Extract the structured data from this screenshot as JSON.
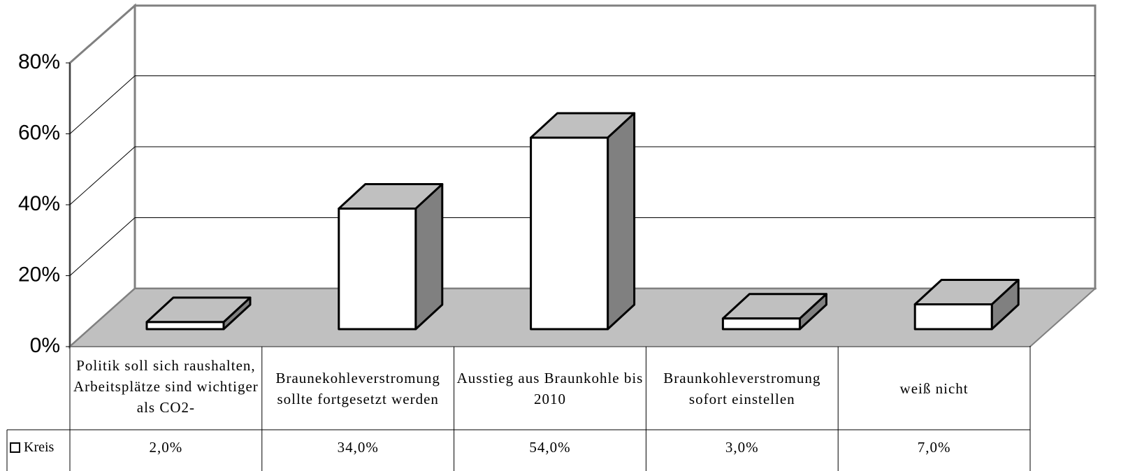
{
  "chart_data": {
    "type": "bar3d",
    "categories": [
      "Politik soll sich raushalten, Arbeitsplätze sind wichtiger als CO2-",
      "Braunekohleverstromung sollte fortgesetzt werden",
      "Ausstieg aus Braunkohle bis 2010",
      "Braunkohleverstromung sofort einstellen",
      "weiß nicht"
    ],
    "series": [
      {
        "name": "Kreis",
        "color": "#ffffff",
        "values": [
          2,
          34,
          54,
          3,
          7
        ],
        "value_labels": [
          "2,0%",
          "34,0%",
          "54,0%",
          "3,0%",
          "7,0%"
        ]
      }
    ],
    "ylim": [
      0,
      80
    ],
    "yticks": [
      {
        "value": 0,
        "label": "0%"
      },
      {
        "value": 20,
        "label": "20%"
      },
      {
        "value": 40,
        "label": "40%"
      },
      {
        "value": 60,
        "label": "60%"
      },
      {
        "value": 80,
        "label": "80%"
      }
    ],
    "grid": true
  }
}
